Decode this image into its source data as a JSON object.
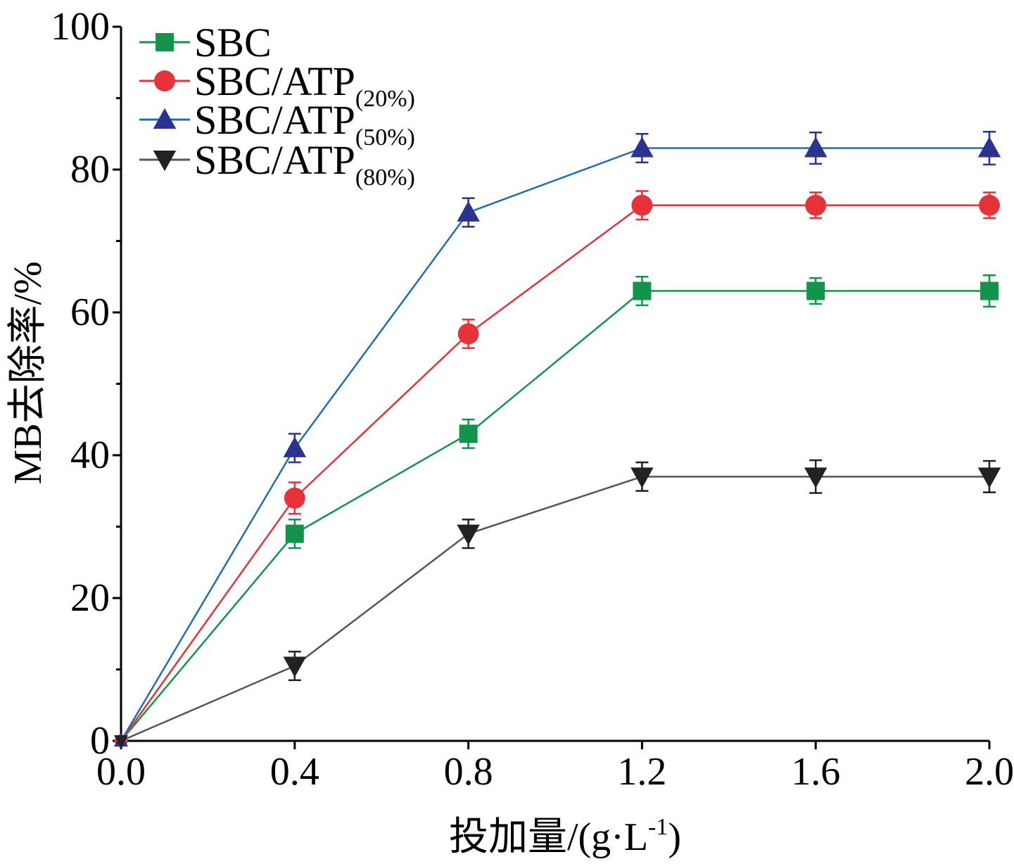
{
  "chart_data": {
    "type": "line",
    "xlabel_main": "投加量/(g·L",
    "xlabel_sup": "-1",
    "xlabel_end": ")",
    "ylabel": "MB去除率/%",
    "x": [
      0.0,
      0.4,
      0.8,
      1.2,
      1.6,
      2.0
    ],
    "x_tick_labels": [
      "0.0",
      "0.4",
      "0.8",
      "1.2",
      "1.6",
      "2.0"
    ],
    "y_tick_labels": [
      "0",
      "20",
      "40",
      "60",
      "80",
      "100"
    ],
    "y_ticks": [
      0,
      20,
      40,
      60,
      80,
      100
    ],
    "xlim": [
      0.0,
      2.0
    ],
    "ylim": [
      0,
      100
    ],
    "grid": false,
    "legend_position": "top-left",
    "series": [
      {
        "name": "SBC",
        "name_sub": "",
        "color": "#12944a",
        "line_color": "#12944a",
        "marker": "square",
        "values": [
          0,
          29,
          43,
          63,
          63,
          63
        ],
        "errors": [
          0,
          2,
          2,
          2,
          1.8,
          2.2
        ]
      },
      {
        "name": "SBC/ATP",
        "name_sub": "(20%)",
        "color": "#e8323a",
        "line_color": "#e8323a",
        "marker": "circle",
        "values": [
          0,
          34,
          57,
          75,
          75,
          75
        ],
        "errors": [
          0,
          2.2,
          2,
          2,
          1.8,
          1.8
        ]
      },
      {
        "name": "SBC/ATP",
        "name_sub": "(50%)",
        "color": "#2b3290",
        "line_color": "#1f6eb5",
        "marker": "triangle-up",
        "values": [
          0,
          41,
          74,
          83,
          83,
          83
        ],
        "errors": [
          0,
          2,
          2,
          2,
          2.2,
          2.3
        ]
      },
      {
        "name": "SBC/ATP",
        "name_sub": "(80%)",
        "color": "#222222",
        "line_color": "#555555",
        "marker": "triangle-down",
        "values": [
          0,
          10.5,
          29,
          37,
          37,
          37
        ],
        "errors": [
          0,
          2,
          2,
          2,
          2.3,
          2.2
        ]
      }
    ]
  }
}
